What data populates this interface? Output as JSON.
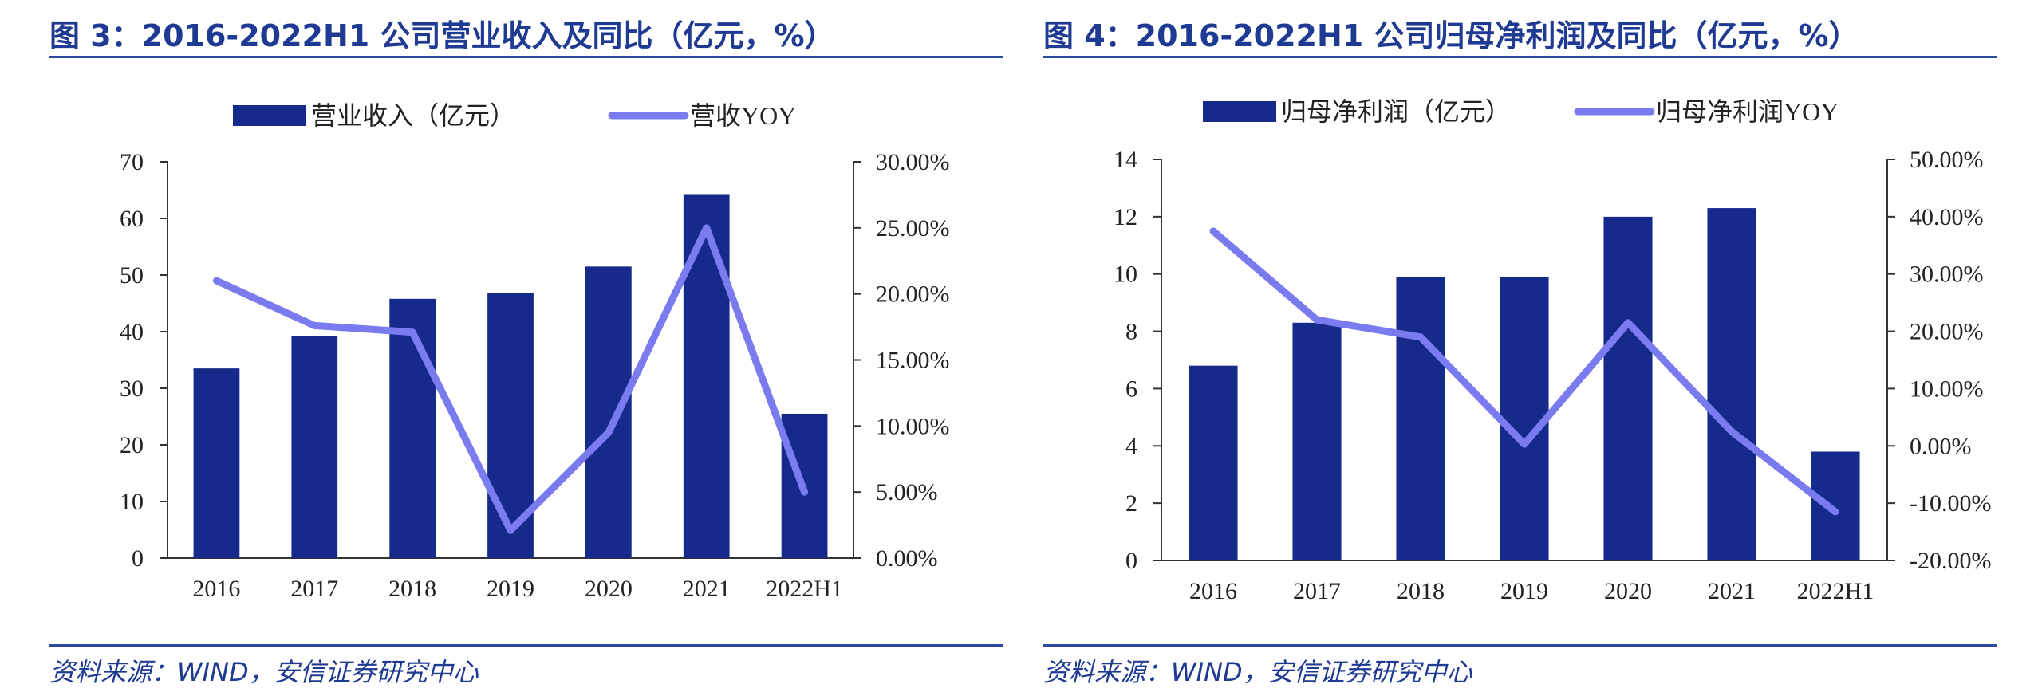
{
  "charts": [
    {
      "figure_title": "图 3：2016-2022H1 公司营业收入及同比（亿元，%）",
      "source": "资料来源：WIND，安信证券研究中心",
      "colors": {
        "bar": "#152a8a",
        "line": "#7b7bf0"
      }
    },
    {
      "figure_title": "图 4：2016-2022H1 公司归母净利润及同比（亿元，%）",
      "source": "资料来源：WIND，安信证券研究中心",
      "colors": {
        "bar": "#152a8a",
        "line": "#7b7bf0"
      }
    }
  ],
  "chart_data": [
    {
      "type": "bar",
      "categories": [
        "2016",
        "2017",
        "2018",
        "2019",
        "2020",
        "2021",
        "2022H1"
      ],
      "series": [
        {
          "name": "营业收入（亿元）",
          "type": "bar",
          "axis": "left",
          "values": [
            33.5,
            39.2,
            45.8,
            46.8,
            51.5,
            64.3,
            25.5
          ]
        },
        {
          "name": "营收YOY",
          "type": "line",
          "axis": "right",
          "values": [
            21.0,
            17.6,
            17.1,
            2.1,
            9.5,
            25.0,
            5.0
          ]
        }
      ],
      "ylim_left": [
        0,
        70
      ],
      "yticks_left": [
        "0",
        "10",
        "20",
        "30",
        "40",
        "50",
        "60",
        "70"
      ],
      "ylim_right": [
        0,
        30
      ],
      "yticks_right": [
        "0.00%",
        "5.00%",
        "10.00%",
        "15.00%",
        "20.00%",
        "25.00%",
        "30.00%"
      ],
      "legend": "top",
      "grid": false
    },
    {
      "type": "bar",
      "categories": [
        "2016",
        "2017",
        "2018",
        "2019",
        "2020",
        "2021",
        "2022H1"
      ],
      "series": [
        {
          "name": "归母净利润（亿元）",
          "type": "bar",
          "axis": "left",
          "values": [
            6.8,
            8.3,
            9.9,
            9.9,
            12.0,
            12.3,
            3.8
          ]
        },
        {
          "name": "归母净利润YOY",
          "type": "line",
          "axis": "right",
          "values": [
            37.5,
            22.0,
            19.0,
            0.3,
            21.5,
            2.5,
            -11.5
          ]
        }
      ],
      "ylim_left": [
        0,
        14
      ],
      "yticks_left": [
        "0",
        "2",
        "4",
        "6",
        "8",
        "10",
        "12",
        "14"
      ],
      "ylim_right": [
        -20,
        50
      ],
      "yticks_right": [
        "-20.00%",
        "-10.00%",
        "0.00%",
        "10.00%",
        "20.00%",
        "30.00%",
        "40.00%",
        "50.00%"
      ],
      "legend": "top",
      "grid": false
    }
  ]
}
